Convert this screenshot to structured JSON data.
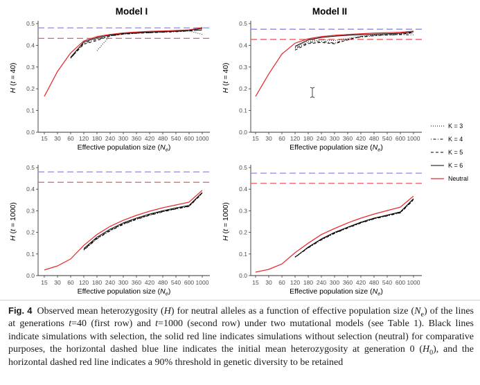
{
  "chart_data": [
    {
      "type": "line",
      "title": "Model I",
      "xlabel_parts": [
        "Effective population size (",
        "N",
        "e",
        ")"
      ],
      "ylabel_parts": [
        "H",
        " (",
        "t",
        " = 40)"
      ],
      "categories": [
        "15",
        "30",
        "60",
        "120",
        "180",
        "240",
        "300",
        "360",
        "420",
        "480",
        "540",
        "600",
        "1000"
      ],
      "yticks": [
        "0.0",
        "0.1",
        "0.2",
        "0.3",
        "0.4",
        "0.5"
      ],
      "ylim": [
        0,
        0.5
      ],
      "grid": false,
      "reference_lines": [
        {
          "value": 0.48,
          "color": "#8a8ae6",
          "linetype": "longdash"
        },
        {
          "value": 0.432,
          "color": "#ef5a5a",
          "linetype": "longdash"
        }
      ],
      "series": [
        {
          "name": "K = 3",
          "values": [
            null,
            null,
            null,
            null,
            0.375,
            0.445,
            0.452,
            0.456,
            0.459,
            0.461,
            0.463,
            0.466,
            0.45
          ]
        },
        {
          "name": "K = 4",
          "values": [
            null,
            null,
            0.34,
            0.41,
            0.428,
            0.443,
            0.451,
            0.455,
            0.458,
            0.46,
            0.462,
            0.466,
            0.472
          ]
        },
        {
          "name": "K = 5",
          "values": [
            null,
            null,
            0.342,
            0.405,
            0.422,
            0.444,
            0.452,
            0.456,
            0.458,
            0.461,
            0.464,
            0.467,
            0.47
          ]
        },
        {
          "name": "K = 6",
          "values": [
            null,
            null,
            0.345,
            0.415,
            0.435,
            0.447,
            0.454,
            0.458,
            0.461,
            0.463,
            0.465,
            0.468,
            0.478
          ]
        },
        {
          "name": "Neutral",
          "values": [
            0.165,
            0.28,
            0.365,
            0.42,
            0.44,
            0.45,
            0.457,
            0.461,
            0.464,
            0.466,
            0.468,
            0.471,
            0.482
          ]
        }
      ]
    },
    {
      "type": "line",
      "title": "Model II",
      "xlabel_parts": [
        "Effective population size (",
        "N",
        "e",
        ")"
      ],
      "ylabel_parts": [
        "H",
        " (",
        "t",
        " = 40)"
      ],
      "categories": [
        "15",
        "30",
        "60",
        "120",
        "180",
        "240",
        "300",
        "360",
        "420",
        "480",
        "540",
        "600",
        "1000"
      ],
      "yticks": [
        "0.0",
        "0.1",
        "0.2",
        "0.3",
        "0.4",
        "0.5"
      ],
      "ylim": [
        0,
        0.5
      ],
      "grid": false,
      "reference_lines": [
        {
          "value": 0.474,
          "color": "#8a8ae6",
          "linetype": "longdash"
        },
        {
          "value": 0.427,
          "color": "#ef5a5a",
          "linetype": "longdash"
        }
      ],
      "series": [
        {
          "name": "K = 3",
          "values": [
            null,
            null,
            null,
            0.39,
            0.418,
            0.425,
            0.422,
            0.432,
            0.442,
            0.447,
            0.45,
            0.452,
            0.455
          ]
        },
        {
          "name": "K = 4",
          "values": [
            null,
            null,
            null,
            0.385,
            0.412,
            0.418,
            0.41,
            0.428,
            0.438,
            0.444,
            0.447,
            0.449,
            0.448
          ]
        },
        {
          "name": "K = 5",
          "values": [
            null,
            null,
            null,
            0.378,
            0.408,
            0.413,
            0.407,
            0.425,
            0.44,
            0.445,
            0.448,
            0.45,
            0.46
          ]
        },
        {
          "name": "K = 6",
          "values": [
            null,
            null,
            null,
            0.395,
            0.425,
            0.436,
            0.442,
            0.446,
            0.449,
            0.451,
            0.453,
            0.455,
            0.462
          ]
        },
        {
          "name": "Neutral",
          "values": [
            0.165,
            0.268,
            0.36,
            0.41,
            0.43,
            0.44,
            0.446,
            0.45,
            0.453,
            0.456,
            0.458,
            0.46,
            0.465
          ]
        }
      ]
    },
    {
      "type": "line",
      "xlabel_parts": [
        "Effective population size (",
        "N",
        "e",
        ")"
      ],
      "ylabel_parts": [
        "H",
        " (",
        "t",
        " = 1000)"
      ],
      "categories": [
        "15",
        "30",
        "60",
        "120",
        "180",
        "240",
        "300",
        "360",
        "420",
        "480",
        "540",
        "600",
        "1000"
      ],
      "yticks": [
        "0.0",
        "0.1",
        "0.2",
        "0.3",
        "0.4",
        "0.5"
      ],
      "ylim": [
        0,
        0.5
      ],
      "grid": false,
      "reference_lines": [
        {
          "value": 0.48,
          "color": "#8a8ae6",
          "linetype": "longdash"
        },
        {
          "value": 0.432,
          "color": "#ef5a5a",
          "linetype": "longdash"
        }
      ],
      "series": [
        {
          "name": "K = 3",
          "values": [
            null,
            null,
            null,
            0.12,
            0.172,
            0.21,
            0.239,
            0.262,
            0.28,
            0.296,
            0.309,
            0.321,
            0.382
          ]
        },
        {
          "name": "K = 4",
          "values": [
            null,
            null,
            null,
            0.118,
            0.17,
            0.207,
            0.237,
            0.26,
            0.279,
            0.295,
            0.308,
            0.32,
            0.38
          ]
        },
        {
          "name": "K = 5",
          "values": [
            null,
            null,
            null,
            0.12,
            0.173,
            0.21,
            0.24,
            0.262,
            0.281,
            0.297,
            0.31,
            0.322,
            0.383
          ]
        },
        {
          "name": "K = 6",
          "values": [
            null,
            null,
            null,
            0.125,
            0.178,
            0.215,
            0.244,
            0.266,
            0.285,
            0.3,
            0.313,
            0.325,
            0.385
          ]
        },
        {
          "name": "Neutral",
          "values": [
            0.026,
            0.045,
            0.077,
            0.14,
            0.19,
            0.228,
            0.256,
            0.279,
            0.298,
            0.314,
            0.327,
            0.34,
            0.395
          ]
        }
      ]
    },
    {
      "type": "line",
      "xlabel_parts": [
        "Effective population size (",
        "N",
        "e",
        ")"
      ],
      "ylabel_parts": [
        "H",
        " (",
        "t",
        " = 1000)"
      ],
      "categories": [
        "15",
        "30",
        "60",
        "120",
        "180",
        "240",
        "300",
        "360",
        "420",
        "480",
        "540",
        "600",
        "1000"
      ],
      "yticks": [
        "0.0",
        "0.1",
        "0.2",
        "0.3",
        "0.4",
        "0.5"
      ],
      "ylim": [
        0,
        0.5
      ],
      "grid": false,
      "reference_lines": [
        {
          "value": 0.474,
          "color": "#8a8ae6",
          "linetype": "longdash"
        },
        {
          "value": 0.427,
          "color": "#ef5a5a",
          "linetype": "longdash"
        }
      ],
      "series": [
        {
          "name": "K = 3",
          "values": [
            null,
            null,
            null,
            0.086,
            0.13,
            0.167,
            0.197,
            0.222,
            0.245,
            0.264,
            0.278,
            0.292,
            0.353
          ]
        },
        {
          "name": "K = 4",
          "values": [
            null,
            null,
            null,
            0.085,
            0.128,
            0.165,
            0.195,
            0.22,
            0.243,
            0.262,
            0.276,
            0.29,
            0.35
          ]
        },
        {
          "name": "K = 5",
          "values": [
            null,
            null,
            null,
            0.086,
            0.13,
            0.168,
            0.197,
            0.222,
            0.245,
            0.264,
            0.278,
            0.292,
            0.352
          ]
        },
        {
          "name": "K = 6",
          "values": [
            null,
            null,
            null,
            0.085,
            0.132,
            0.17,
            0.2,
            0.224,
            0.247,
            0.266,
            0.28,
            0.295,
            0.356
          ]
        },
        {
          "name": "Neutral",
          "values": [
            0.016,
            0.029,
            0.054,
            0.106,
            0.15,
            0.19,
            0.218,
            0.244,
            0.266,
            0.285,
            0.301,
            0.317,
            0.368
          ]
        }
      ]
    }
  ],
  "legend": {
    "position": "right",
    "entries": [
      {
        "label": "K = 3",
        "color": "#000000",
        "linetype": "dotted"
      },
      {
        "label": "K = 4",
        "color": "#000000",
        "linetype": "dotdash"
      },
      {
        "label": "K = 5",
        "color": "#000000",
        "linetype": "dashed"
      },
      {
        "label": "K = 6",
        "color": "#000000",
        "linetype": "solid"
      },
      {
        "label": "Neutral",
        "color": "#e8292b",
        "linetype": "solid"
      }
    ]
  },
  "caption": {
    "label": "Fig. 4",
    "parts": [
      "Observed mean heterozygosity (",
      "H",
      ") for neutral alleles as a function of effective population size (",
      "N",
      "e",
      ") of the lines at generations ",
      "t",
      "=40 (first row) and ",
      "t",
      "=1000 (second row) under two mutational models (see ",
      "Table 1",
      "). Black lines indicate simulations with selection, the solid red line indicates simulations without selection (neutral) for comparative purposes, the horizontal dashed blue line indicates the initial mean het­erozygosity at generation 0 (",
      "H",
      "0",
      "), and the horizontal dashed red line indicates a 90% threshold in genetic diversity to be retained"
    ]
  }
}
